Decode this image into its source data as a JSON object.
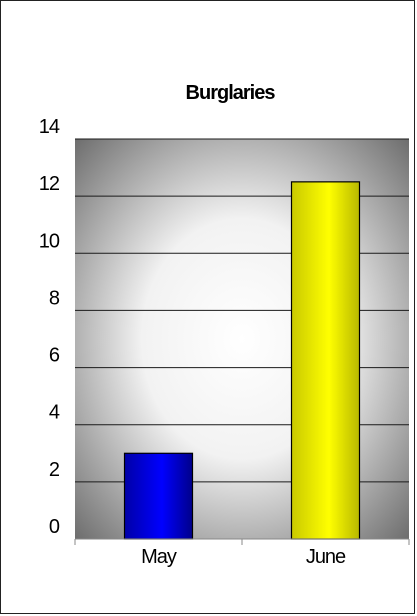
{
  "chart_data": {
    "type": "bar",
    "title": "Burglaries",
    "categories": [
      "May",
      "June"
    ],
    "values": [
      3,
      12.5
    ],
    "yticks": [
      "0",
      "2",
      "4",
      "6",
      "8",
      "10",
      "12",
      "14"
    ],
    "ylim": [
      0,
      14
    ],
    "xlabel": "",
    "ylabel": "",
    "grid": true,
    "legend": "none",
    "colors": [
      "#0000ff",
      "#ffff00"
    ]
  }
}
